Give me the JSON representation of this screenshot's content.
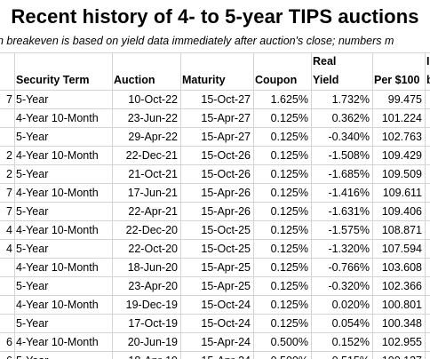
{
  "title": "Recent history of 4- to 5-year TIPS auctions",
  "subtitle": "n breakeven is based on yield data immediately after auction's close; numbers m",
  "header": {
    "c0_top": "",
    "c0_bot": "",
    "term": "Security Term",
    "auction": "Auction",
    "maturity": "Maturity",
    "coupon": "Coupon",
    "real_top": "Real",
    "real_bot": "Yield",
    "per100": "Per $100",
    "last_top": "I",
    "last_bot": "b"
  },
  "rows": [
    {
      "c0": "7",
      "term": "5-Year",
      "auction": "10-Oct-22",
      "maturity": "15-Oct-27",
      "coupon": "1.625%",
      "yield": "1.732%",
      "price": "99.475"
    },
    {
      "c0": "",
      "term": "4-Year 10-Month",
      "auction": "23-Jun-22",
      "maturity": "15-Apr-27",
      "coupon": "0.125%",
      "yield": "0.362%",
      "price": "101.224"
    },
    {
      "c0": "",
      "term": "5-Year",
      "auction": "29-Apr-22",
      "maturity": "15-Apr-27",
      "coupon": "0.125%",
      "yield": "-0.340%",
      "price": "102.763"
    },
    {
      "c0": "2",
      "term": "4-Year 10-Month",
      "auction": "22-Dec-21",
      "maturity": "15-Oct-26",
      "coupon": "0.125%",
      "yield": "-1.508%",
      "price": "109.429"
    },
    {
      "c0": "2",
      "term": "5-Year",
      "auction": "21-Oct-21",
      "maturity": "15-Oct-26",
      "coupon": "0.125%",
      "yield": "-1.685%",
      "price": "109.509"
    },
    {
      "c0": "7",
      "term": "4-Year 10-Month",
      "auction": "17-Jun-21",
      "maturity": "15-Apr-26",
      "coupon": "0.125%",
      "yield": "-1.416%",
      "price": "109.611"
    },
    {
      "c0": "7",
      "term": "5-Year",
      "auction": "22-Apr-21",
      "maturity": "15-Apr-26",
      "coupon": "0.125%",
      "yield": "-1.631%",
      "price": "109.406"
    },
    {
      "c0": "4",
      "term": "4-Year 10-Month",
      "auction": "22-Dec-20",
      "maturity": "15-Oct-25",
      "coupon": "0.125%",
      "yield": "-1.575%",
      "price": "108.871"
    },
    {
      "c0": "4",
      "term": "5-Year",
      "auction": "22-Oct-20",
      "maturity": "15-Oct-25",
      "coupon": "0.125%",
      "yield": "-1.320%",
      "price": "107.594"
    },
    {
      "c0": "",
      "term": "4-Year 10-Month",
      "auction": "18-Jun-20",
      "maturity": "15-Apr-25",
      "coupon": "0.125%",
      "yield": "-0.766%",
      "price": "103.608"
    },
    {
      "c0": "",
      "term": "5-Year",
      "auction": "23-Apr-20",
      "maturity": "15-Apr-25",
      "coupon": "0.125%",
      "yield": "-0.320%",
      "price": "102.366"
    },
    {
      "c0": "",
      "term": "4-Year 10-Month",
      "auction": "19-Dec-19",
      "maturity": "15-Oct-24",
      "coupon": "0.125%",
      "yield": "0.020%",
      "price": "100.801"
    },
    {
      "c0": "",
      "term": "5-Year",
      "auction": "17-Oct-19",
      "maturity": "15-Oct-24",
      "coupon": "0.125%",
      "yield": "0.054%",
      "price": "100.348"
    },
    {
      "c0": "6",
      "term": "4-Year 10-Month",
      "auction": "20-Jun-19",
      "maturity": "15-Apr-24",
      "coupon": "0.500%",
      "yield": "0.152%",
      "price": "102.955"
    },
    {
      "c0": "6",
      "term": "5-Year",
      "auction": "18-Apr-19",
      "maturity": "15-Apr-24",
      "coupon": "0.500%",
      "yield": "0.515%",
      "price": "100.137"
    }
  ]
}
